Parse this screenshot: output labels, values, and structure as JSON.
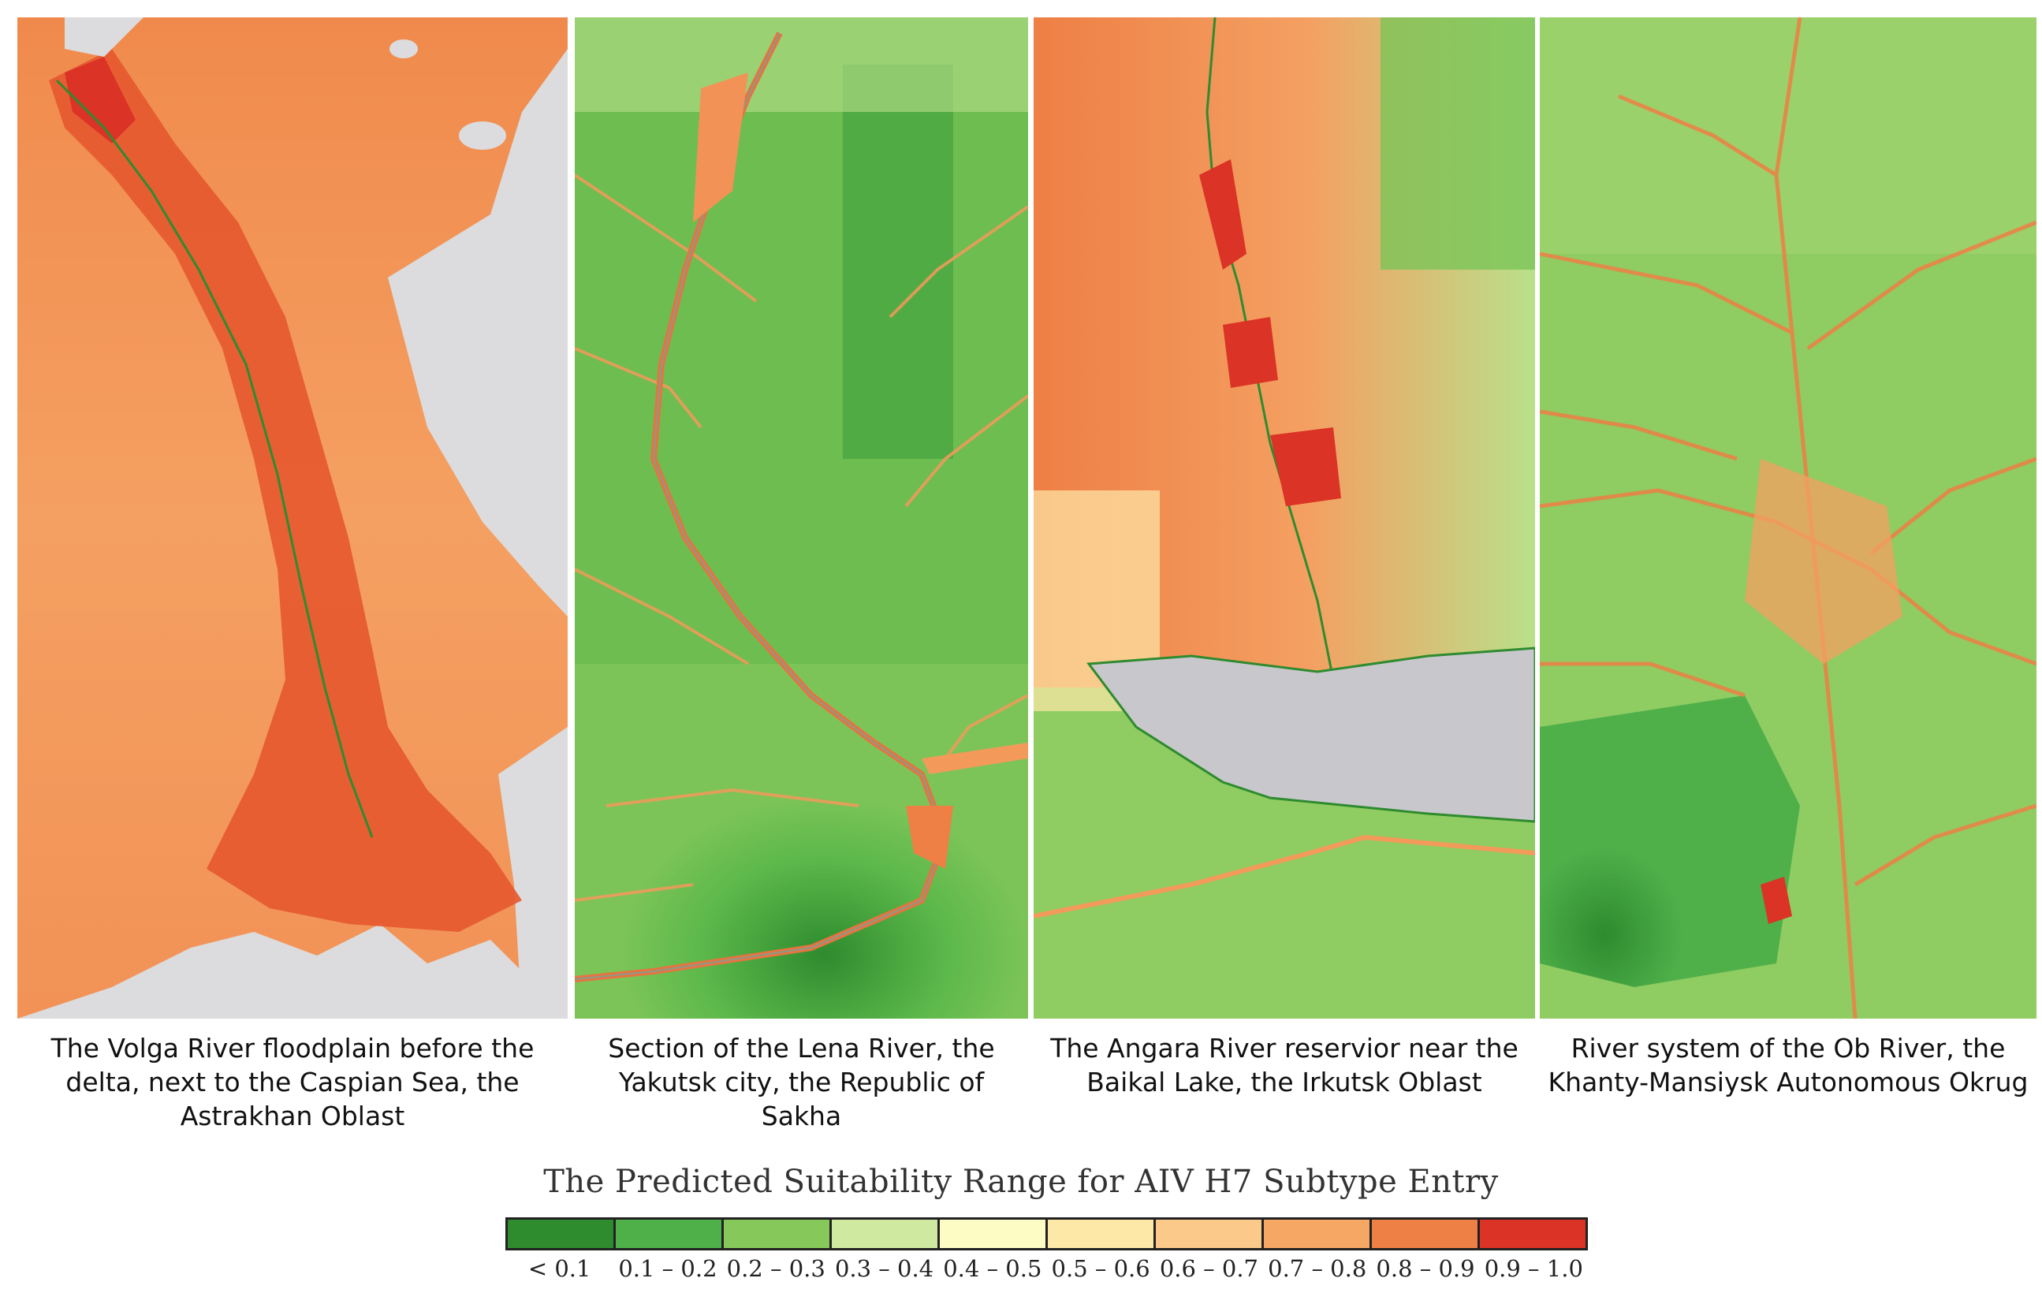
{
  "panels": [
    {
      "id": "volga",
      "caption": "The Volga River floodplain before the delta, next to the Caspian Sea, the Astrakhan Oblast"
    },
    {
      "id": "lena",
      "caption": "Section of the Lena River, the Yakutsk city, the Republic of Sakha"
    },
    {
      "id": "angara",
      "caption": "The Angara River reservior near the Baikal Lake, the Irkutsk Oblast"
    },
    {
      "id": "ob",
      "caption": "River system of the Ob River, the Khanty-Mansiysk Autonomous Okrug"
    }
  ],
  "legend": {
    "title": "The Predicted Suitability Range for AIV H7 Subtype Entry",
    "classes": [
      {
        "label": "< 0.1",
        "color": "#2e8b2e"
      },
      {
        "label": "0.1 – 0.2",
        "color": "#4fb04a"
      },
      {
        "label": "0.2 – 0.3",
        "color": "#86c95a"
      },
      {
        "label": "0.3 – 0.4",
        "color": "#cfeaa0"
      },
      {
        "label": "0.4 – 0.5",
        "color": "#fcfcc4"
      },
      {
        "label": "0.5 – 0.6",
        "color": "#fde8a8"
      },
      {
        "label": "0.6 – 0.7",
        "color": "#fbc98a"
      },
      {
        "label": "0.7 – 0.8",
        "color": "#f6a763"
      },
      {
        "label": "0.8 – 0.9",
        "color": "#ee7f45"
      },
      {
        "label": "0.9 – 1.0",
        "color": "#db3326"
      }
    ]
  },
  "colors": {
    "water": "#dcdcde",
    "high": "#db3326",
    "midhigh": "#ee7f45",
    "mid": "#f6a763",
    "low": "#4fb04a",
    "verylow": "#2e8b2e"
  }
}
